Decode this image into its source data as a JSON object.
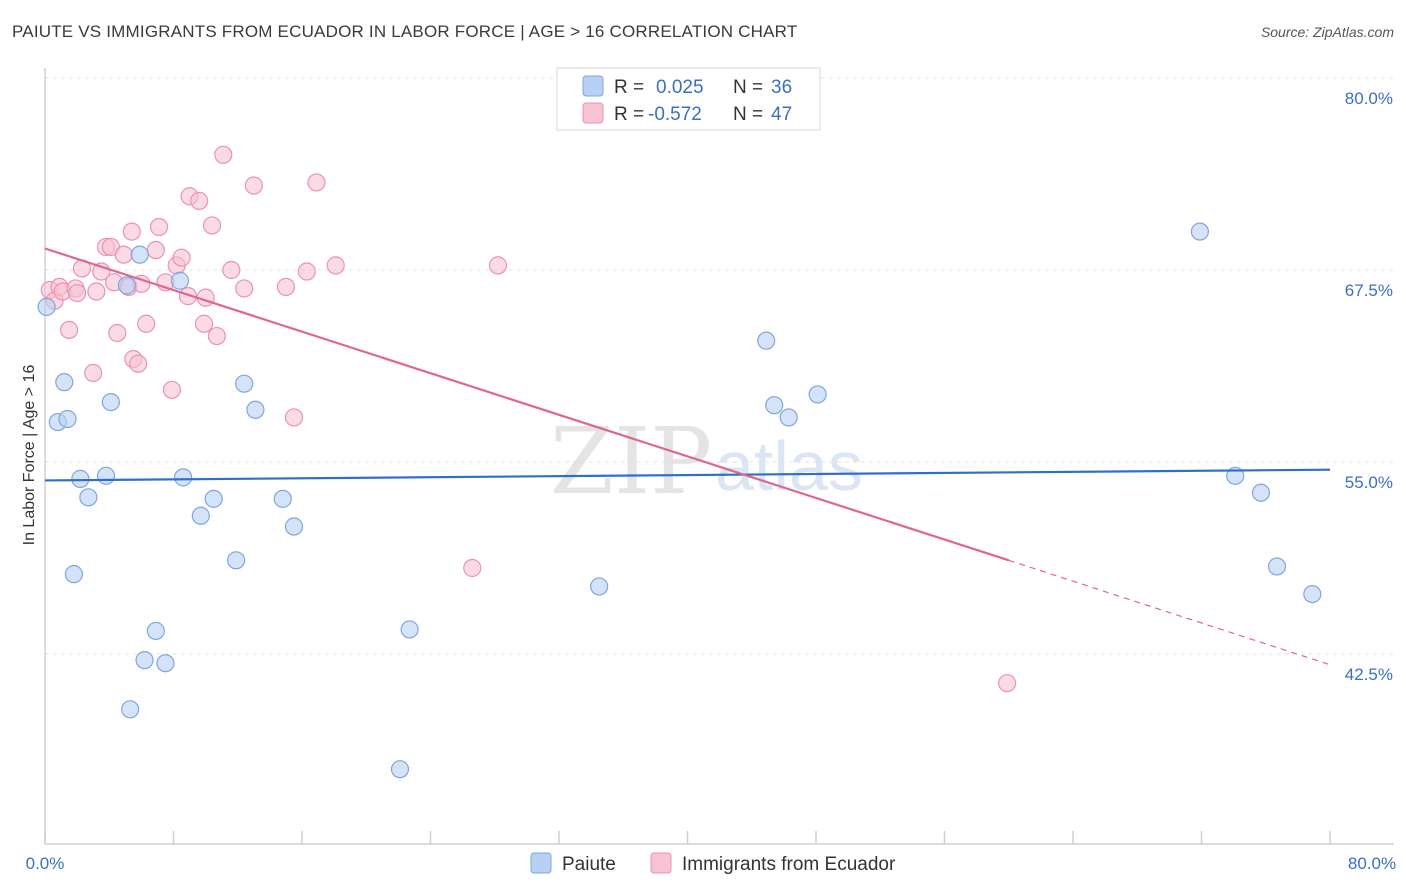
{
  "header": {
    "title": "PAIUTE VS IMMIGRANTS FROM ECUADOR IN LABOR FORCE | AGE > 16 CORRELATION CHART",
    "source": "Source: ZipAtlas.com"
  },
  "watermark": {
    "zip": "ZIP",
    "atlas": "atlas"
  },
  "legend_top": {
    "rows": [
      {
        "r_label": "R =",
        "r_value": "0.025",
        "n_label": "N =",
        "n_value": "36"
      },
      {
        "r_label": "R =",
        "r_value": "-0.572",
        "n_label": "N =",
        "n_value": "47"
      }
    ]
  },
  "colors": {
    "paiute_fill": "#b7d0f3",
    "paiute_stroke": "#7fa6df",
    "paiute_line": "#2f6fcc",
    "ecuador_fill": "#f7c2d2",
    "ecuador_stroke": "#eb93b0",
    "ecuador_line": "#e0658f"
  },
  "chart_data": {
    "type": "scatter",
    "title": "PAIUTE VS IMMIGRANTS FROM ECUADOR IN LABOR FORCE | AGE > 16 CORRELATION CHART",
    "xlabel": "",
    "ylabel": "In Labor Force | Age > 16",
    "xlim": [
      0,
      80
    ],
    "ylim": [
      34.5,
      83
    ],
    "x_ticks": [
      "0.0%",
      "80.0%"
    ],
    "y_ticks": [
      {
        "value": 80.0,
        "label": "80.0%"
      },
      {
        "value": 67.5,
        "label": "67.5%"
      },
      {
        "value": 55.0,
        "label": "55.0%"
      },
      {
        "value": 42.5,
        "label": "42.5%"
      }
    ],
    "grid": "horizontal dashed",
    "legend": "bottom-center",
    "series": [
      {
        "name": "Paiute",
        "points": [
          [
            0.1,
            65.1
          ],
          [
            0.8,
            57.6
          ],
          [
            1.2,
            60.2
          ],
          [
            1.4,
            57.8
          ],
          [
            1.8,
            47.7
          ],
          [
            2.2,
            53.9
          ],
          [
            2.7,
            52.7
          ],
          [
            3.8,
            54.1
          ],
          [
            4.1,
            58.9
          ],
          [
            5.1,
            66.5
          ],
          [
            5.3,
            38.9
          ],
          [
            5.9,
            68.5
          ],
          [
            6.2,
            42.1
          ],
          [
            6.9,
            44.0
          ],
          [
            7.5,
            41.9
          ],
          [
            8.6,
            54.0
          ],
          [
            8.4,
            66.8
          ],
          [
            9.7,
            51.5
          ],
          [
            10.5,
            52.6
          ],
          [
            11.9,
            48.6
          ],
          [
            12.4,
            60.1
          ],
          [
            13.1,
            58.4
          ],
          [
            14.8,
            52.6
          ],
          [
            15.5,
            50.8
          ],
          [
            22.1,
            35.0
          ],
          [
            22.7,
            44.1
          ],
          [
            34.5,
            46.9
          ],
          [
            44.9,
            62.9
          ],
          [
            45.4,
            58.7
          ],
          [
            46.3,
            57.9
          ],
          [
            48.1,
            59.4
          ],
          [
            71.9,
            70.0
          ],
          [
            74.1,
            54.1
          ],
          [
            75.7,
            53.0
          ],
          [
            76.7,
            48.2
          ],
          [
            78.9,
            46.4
          ]
        ],
        "trend": {
          "x": [
            0,
            80
          ],
          "y": [
            53.8,
            54.5
          ]
        }
      },
      {
        "name": "Immigrants from Ecuador",
        "points": [
          [
            0.3,
            66.2
          ],
          [
            0.6,
            65.5
          ],
          [
            0.9,
            66.4
          ],
          [
            1.1,
            66.1
          ],
          [
            1.5,
            63.6
          ],
          [
            1.9,
            66.3
          ],
          [
            2.0,
            66.0
          ],
          [
            2.3,
            67.6
          ],
          [
            3.0,
            60.8
          ],
          [
            3.2,
            66.1
          ],
          [
            3.5,
            67.4
          ],
          [
            3.8,
            69.0
          ],
          [
            4.1,
            69.0
          ],
          [
            4.3,
            66.7
          ],
          [
            4.5,
            63.4
          ],
          [
            4.9,
            68.5
          ],
          [
            5.2,
            66.4
          ],
          [
            5.4,
            70.0
          ],
          [
            5.5,
            61.7
          ],
          [
            5.8,
            61.4
          ],
          [
            6.0,
            66.6
          ],
          [
            6.3,
            64.0
          ],
          [
            6.9,
            68.8
          ],
          [
            7.1,
            70.3
          ],
          [
            7.5,
            66.7
          ],
          [
            7.9,
            59.7
          ],
          [
            8.2,
            67.8
          ],
          [
            8.5,
            68.3
          ],
          [
            8.9,
            65.8
          ],
          [
            9.0,
            72.3
          ],
          [
            9.6,
            72.0
          ],
          [
            9.9,
            64.0
          ],
          [
            10.0,
            65.7
          ],
          [
            10.4,
            70.4
          ],
          [
            10.7,
            63.2
          ],
          [
            11.1,
            75.0
          ],
          [
            11.6,
            67.5
          ],
          [
            12.4,
            66.3
          ],
          [
            13.0,
            73.0
          ],
          [
            15.0,
            66.4
          ],
          [
            15.5,
            57.9
          ],
          [
            16.3,
            67.4
          ],
          [
            16.9,
            73.2
          ],
          [
            18.1,
            67.8
          ],
          [
            26.6,
            48.1
          ],
          [
            28.2,
            67.8
          ],
          [
            59.9,
            40.6
          ]
        ],
        "trend": {
          "x": [
            0,
            60
          ],
          "y": [
            68.9,
            48.6
          ]
        },
        "trend_dashed": {
          "x": [
            60,
            80
          ],
          "y": [
            48.6,
            41.8
          ]
        }
      }
    ]
  }
}
